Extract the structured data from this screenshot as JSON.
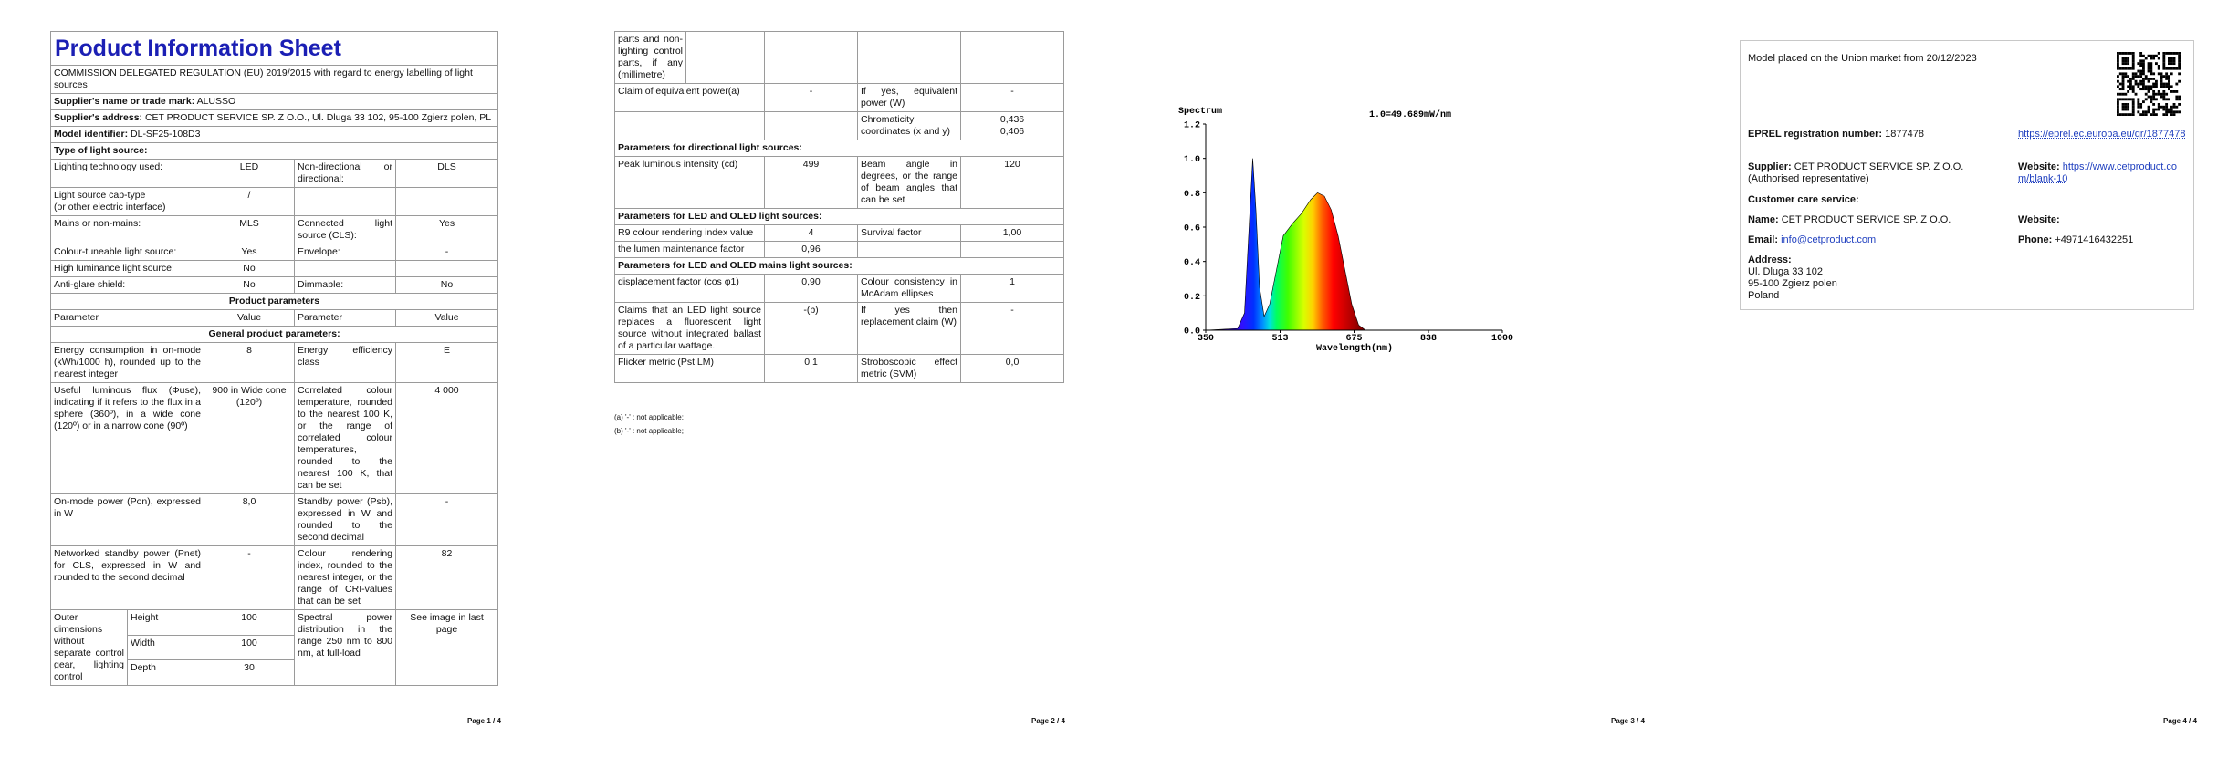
{
  "page1": {
    "title": "Product Information Sheet",
    "regulation": "COMMISSION DELEGATED REGULATION (EU) 2019/2015 with regard to energy labelling of light sources",
    "supplier_name": {
      "label": "Supplier's name or trade mark:",
      "value": "ALUSSO"
    },
    "supplier_address": {
      "label": "Supplier's address:",
      "value": "CET PRODUCT SERVICE SP. Z O.O., Ul. Dluga 33 102, 95-100 Zgierz polen, PL"
    },
    "model": {
      "label": "Model identifier:",
      "value": "DL-SF25-108D3"
    },
    "type_heading": "Type of light source:",
    "type_rows": [
      [
        "Lighting technology used:",
        "LED",
        "Non-directional or directional:",
        "DLS"
      ],
      [
        [
          "Light source cap-type",
          "(or other electric interface)"
        ],
        "/",
        null,
        null
      ],
      [
        "Mains or non-mains:",
        "MLS",
        "Connected light source (CLS):",
        "Yes"
      ],
      [
        "Colour-tuneable light source:",
        "Yes",
        "Envelope:",
        "-"
      ],
      [
        "High luminance light source:",
        "No",
        null,
        null
      ],
      [
        "Anti-glare shield:",
        "No",
        "Dimmable:",
        "No"
      ]
    ],
    "params_heading": "Product parameters",
    "params_header": [
      "Parameter",
      "Value",
      "Parameter",
      "Value"
    ],
    "general_heading": "General product parameters:",
    "general_rows": [
      [
        "Energy consumption in on-mode (kWh/1000 h), rounded up to the nearest integer",
        "8",
        "Energy efficiency class",
        "E"
      ],
      [
        "Useful luminous flux (Φuse), indicating if it refers to the flux in a sphere (360º), in a wide cone (120º) or in a narrow cone (90º)",
        "900 in Wide cone (120º)",
        "Correlated colour temperature, rounded to the nearest 100 K, or the range of correlated colour temperatures, rounded to the nearest 100 K, that can be set",
        "4 000"
      ],
      [
        "On-mode power (Pon), expressed in W",
        "8,0",
        "Standby power (Psb), expressed in W and rounded to the second decimal",
        "-"
      ],
      [
        "Networked standby power (Pnet) for CLS, expressed in W and rounded to the second decimal",
        "-",
        "Colour rendering index, rounded to the nearest integer, or the range of CRI-values that can be set",
        "82"
      ]
    ],
    "dimensions": {
      "label": "Outer dimensions without separate control gear, lighting control",
      "items": [
        {
          "name": "Height",
          "value": "100"
        },
        {
          "name": "Width",
          "value": "100"
        },
        {
          "name": "Depth",
          "value": "30"
        }
      ],
      "param": "Spectral power distribution in the range 250 nm to 800 nm, at full-load",
      "param_value": "See image in last page"
    },
    "footer": "Page 1 / 4"
  },
  "page2": {
    "rows": [
      [
        "parts and non-lighting control parts, if any (millimetre)",
        null,
        null,
        null,
        null
      ],
      [
        "Claim of equivalent power(a)",
        "-",
        "If yes, equivalent power (W)",
        "-"
      ],
      [
        null,
        null,
        "Chromaticity coordinates (x and y)",
        [
          "0,436",
          "0,406"
        ]
      ],
      "Parameters for directional light sources:",
      [
        "Peak luminous intensity (cd)",
        "499",
        "Beam angle in degrees, or the range of beam angles that can be set",
        "120"
      ],
      "Parameters for LED and OLED light sources:",
      [
        "R9 colour rendering index value",
        "4",
        "Survival factor",
        "1,00"
      ],
      [
        "the lumen maintenance factor",
        "0,96",
        null,
        null
      ],
      "Parameters for LED and OLED mains light sources:",
      [
        "displacement factor (cos φ1)",
        "0,90",
        "Colour consistency in McAdam ellipses",
        "1"
      ],
      [
        "Claims that an LED light source replaces a fluorescent light source without integrated ballast of a particular wattage.",
        "-(b)",
        "If yes then replacement claim (W)",
        "-"
      ],
      [
        "Flicker metric (Pst LM)",
        "0,1",
        "Stroboscopic effect metric (SVM)",
        "0,0"
      ]
    ],
    "notes": [
      "(a) '-' : not applicable;",
      "(b) '-' : not applicable;"
    ],
    "footer": "Page 2 / 4"
  },
  "page3": {
    "chart_data": {
      "type": "area",
      "title": "Spectrum",
      "subtitle": "1.0=49.689mW/nm",
      "x_label": "Wavelength(nm)",
      "x": [
        350,
        420,
        435,
        445,
        453,
        460,
        468,
        478,
        490,
        505,
        520,
        540,
        560,
        580,
        595,
        610,
        625,
        640,
        655,
        670,
        685,
        700,
        1000
      ],
      "values": [
        0,
        0.01,
        0.1,
        0.6,
        1.0,
        0.7,
        0.25,
        0.08,
        0.15,
        0.35,
        0.55,
        0.62,
        0.68,
        0.76,
        0.8,
        0.78,
        0.7,
        0.55,
        0.35,
        0.15,
        0.03,
        0,
        0
      ],
      "xlim": [
        350,
        1000
      ],
      "ylim": [
        0,
        1.2
      ],
      "xticks": [
        350,
        513,
        675,
        838,
        1000
      ],
      "yticks": [
        {
          "value": 0,
          "label": "0.0"
        },
        0.2,
        0.4,
        0.6,
        0.8,
        {
          "value": 1,
          "label": "1.0"
        },
        1.2
      ]
    },
    "footer": "Page 3 / 4"
  },
  "page4": {
    "market": "Model placed on the Union market from 20/12/2023",
    "eprel": {
      "label": "EPREL registration number:",
      "value": "1877478",
      "link": "https://eprel.ec.europa.eu/qr/1877478"
    },
    "supplier": {
      "label": "Supplier:",
      "value": "CET PRODUCT SERVICE SP. Z O.O. (Authorised representative)",
      "website_label": "Website:",
      "website": "https://www.cetproduct.com/blank-10"
    },
    "care_heading": "Customer care service:",
    "name": {
      "label": "Name:",
      "value": "CET PRODUCT SERVICE SP. Z O.O.",
      "website_label": "Website:"
    },
    "email": {
      "label": "Email:",
      "value": "info@cetproduct.com",
      "phone_label": "Phone:",
      "phone": "+4971416432251"
    },
    "address": {
      "label": "Address:",
      "lines": [
        "Ul. Dluga 33 102",
        "95-100 Zgierz polen",
        "Poland"
      ]
    },
    "footer": "Page 4 / 4"
  }
}
